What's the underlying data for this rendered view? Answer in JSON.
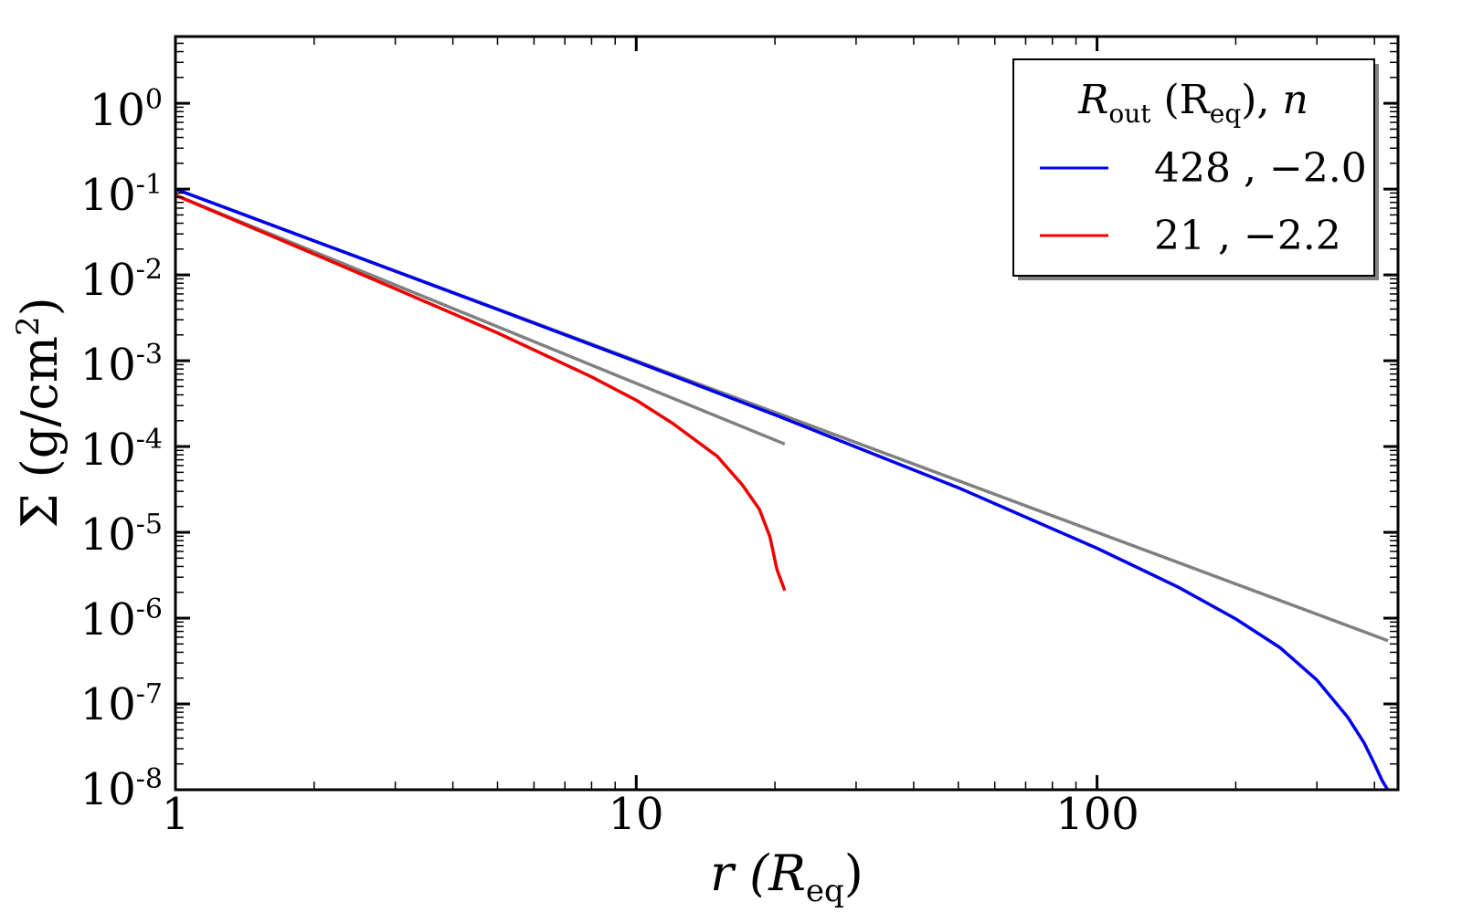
{
  "chart_data": {
    "type": "line",
    "title": "",
    "xlabel": {
      "main": "r (R",
      "sub": "eq",
      "close": ")"
    },
    "ylabel": {
      "main": "Σ (g/cm",
      "sup": "2",
      "close": ")"
    },
    "xscale": "log",
    "yscale": "log",
    "xlim": [
      1,
      450
    ],
    "ylim": [
      1e-08,
      6
    ],
    "grid": false,
    "legend_position": "top-right",
    "x_ticks": [
      {
        "value": 1,
        "label": "1"
      },
      {
        "value": 10,
        "label": "10"
      },
      {
        "value": 100,
        "label": "100"
      }
    ],
    "y_ticks": [
      {
        "value": 1,
        "base": "10",
        "exp": "0"
      },
      {
        "value": 0.1,
        "base": "10",
        "exp": "-1"
      },
      {
        "value": 0.01,
        "base": "10",
        "exp": "-2"
      },
      {
        "value": 0.001,
        "base": "10",
        "exp": "-3"
      },
      {
        "value": 0.0001,
        "base": "10",
        "exp": "-4"
      },
      {
        "value": 1e-05,
        "base": "10",
        "exp": "-5"
      },
      {
        "value": 1e-06,
        "base": "10",
        "exp": "-6"
      },
      {
        "value": 1e-07,
        "base": "10",
        "exp": "-7"
      },
      {
        "value": 1e-08,
        "base": "10",
        "exp": "-8"
      }
    ],
    "legend": {
      "title": {
        "r": "R",
        "r_sub": "out",
        "unit_open": " (R",
        "unit_sub": "eq",
        "unit_close": "),  ",
        "n": "n"
      },
      "entries": [
        {
          "label": "428 , −2.0",
          "color": "#0000ee"
        },
        {
          "label": "21 , −2.2",
          "color": "#ee0000"
        }
      ]
    },
    "series": [
      {
        "name": "428 , −2.0",
        "color": "#0000ee",
        "x": [
          1,
          2,
          5,
          10,
          20,
          50,
          100,
          150,
          200,
          250,
          300,
          350,
          380,
          400,
          415,
          425,
          428
        ],
        "y": [
          0.1,
          0.0249,
          0.00396,
          0.000974,
          0.000234,
          3.31e-05,
          6.52e-06,
          2.3e-06,
          9.8e-07,
          4.5e-07,
          1.9e-07,
          7e-08,
          3.5e-08,
          2e-08,
          1.3e-08,
          1.05e-08,
          1e-08
        ]
      },
      {
        "name": "21 , −2.2",
        "color": "#ee0000",
        "x": [
          1,
          2,
          3,
          5,
          8,
          10,
          12,
          15,
          17,
          18.5,
          19.5,
          20.2,
          21
        ],
        "y": [
          0.085,
          0.0175,
          0.0069,
          0.00211,
          0.000648,
          0.000347,
          0.000186,
          7.67e-05,
          3.56e-05,
          1.86e-05,
          8.9e-06,
          3.7e-06,
          2.1e-06
        ]
      },
      {
        "name": "reference-428",
        "color": "#808080",
        "x": [
          1,
          428
        ],
        "y": [
          0.1,
          5.46e-07
        ]
      },
      {
        "name": "reference-21",
        "color": "#808080",
        "x": [
          1,
          21
        ],
        "y": [
          0.085,
          0.000107
        ]
      }
    ]
  }
}
